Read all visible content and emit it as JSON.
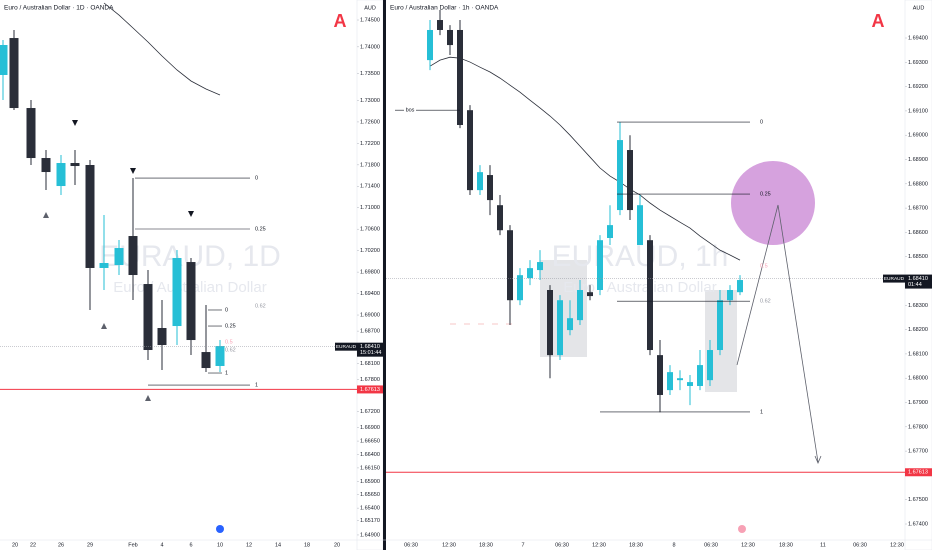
{
  "chart_data": [
    {
      "type": "candlestick",
      "title": "Euro / Australian Dollar · 1D · OANDA",
      "watermark": "EURAUD, 1D",
      "watermark_sub": "Euro / Australian Dollar",
      "currency": "AUD",
      "up_color": "#26bfd6",
      "down_color": "#2a2e39",
      "ma_color": "#2a2e39",
      "ylim": [
        1.64806,
        1.74873
      ],
      "yticks": [
        {
          "value": 1.745,
          "label": "1.74500"
        },
        {
          "value": 1.74,
          "label": "1.74000"
        },
        {
          "value": 1.735,
          "label": "1.73500"
        },
        {
          "value": 1.73,
          "label": "1.73000"
        },
        {
          "value": 1.726,
          "label": "1.72600"
        },
        {
          "value": 1.722,
          "label": "1.72200"
        },
        {
          "value": 1.718,
          "label": "1.71800"
        },
        {
          "value": 1.714,
          "label": "1.71400"
        },
        {
          "value": 1.71,
          "label": "1.71000"
        },
        {
          "value": 1.706,
          "label": "1.70600"
        },
        {
          "value": 1.702,
          "label": "1.70200"
        },
        {
          "value": 1.698,
          "label": "1.69800"
        },
        {
          "value": 1.694,
          "label": "1.69400"
        },
        {
          "value": 1.69,
          "label": "1.69000"
        },
        {
          "value": 1.687,
          "label": "1.68700"
        },
        {
          "value": 1.681,
          "label": "1.68100"
        },
        {
          "value": 1.678,
          "label": "1.67800"
        },
        {
          "value": 1.672,
          "label": "1.67200"
        },
        {
          "value": 1.669,
          "label": "1.66900"
        },
        {
          "value": 1.6665,
          "label": "1.66650"
        },
        {
          "value": 1.664,
          "label": "1.66400"
        },
        {
          "value": 1.6615,
          "label": "1.66150"
        },
        {
          "value": 1.659,
          "label": "1.65900"
        },
        {
          "value": 1.6565,
          "label": "1.65650"
        },
        {
          "value": 1.654,
          "label": "1.65400"
        },
        {
          "value": 1.6517,
          "label": "1.65170"
        },
        {
          "value": 1.649,
          "label": "1.64900"
        }
      ],
      "xlabels": [
        "20",
        "22",
        "26",
        "29",
        "Feb",
        "4",
        "6",
        "10",
        "12",
        "14",
        "18",
        "20"
      ],
      "open": [
        1.73475,
        1.74164,
        1.72859,
        1.71927,
        1.71405,
        1.71834,
        1.71797,
        1.69877,
        1.69932,
        1.70473,
        1.69578,
        1.68758,
        1.68795,
        1.69988,
        1.6831,
        1.6805
      ],
      "high": [
        1.74127,
        1.74314,
        1.73009,
        1.72076,
        1.71983,
        1.72076,
        1.7189,
        1.70865,
        1.70399,
        1.71554,
        1.69839,
        1.6928,
        1.70212,
        1.70063,
        1.69187,
        1.68534
      ],
      "low": [
        1.73009,
        1.72822,
        1.71797,
        1.71331,
        1.71238,
        1.71424,
        1.69094,
        1.69466,
        1.69746,
        1.6928,
        1.68162,
        1.67975,
        1.68441,
        1.68255,
        1.67938,
        1.67938
      ],
      "close": [
        1.74034,
        1.72859,
        1.71927,
        1.71666,
        1.71834,
        1.71778,
        1.69877,
        1.6997,
        1.70249,
        1.69746,
        1.68348,
        1.68441,
        1.70063,
        1.68534,
        1.68012,
        1.68422
      ],
      "ma": [
        null,
        null,
        null,
        null,
        null,
        null,
        null,
        1.74817,
        1.74593,
        1.74351,
        1.7409,
        1.73829,
        1.73568,
        1.73363,
        1.73214,
        1.73102
      ],
      "levels": [
        {
          "label": "0",
          "price": 1.71554,
          "color": "#131722"
        },
        {
          "label": "0.25",
          "price": 1.70604,
          "color": "#131722"
        },
        {
          "label": "0.62",
          "price": 1.69168,
          "color": "#9598a1"
        },
        {
          "label": "0",
          "price": 1.69094,
          "color": "#131722"
        },
        {
          "label": "0.25",
          "price": 1.68795,
          "color": "#131722"
        },
        {
          "label": "0.5",
          "price": 1.68497,
          "color": "#f7a1b5"
        },
        {
          "label": "0.62",
          "price": 1.68348,
          "color": "#9598a1"
        },
        {
          "label": "1",
          "price": 1.67919,
          "color": "#131722"
        },
        {
          "label": "1",
          "price": 1.67695,
          "color": "#131722"
        }
      ],
      "red_line": {
        "value": 1.67613,
        "label": "1.67613"
      },
      "current_price": {
        "value": 1.6841,
        "label": "1.68410",
        "symbol": "EURAUD",
        "countdown": "15:01:44"
      }
    },
    {
      "type": "candlestick",
      "title": "Euro / Australian Dollar · 1h · OANDA",
      "watermark": "EURAUD, 1h",
      "watermark_sub": "Euro / Australian Dollar",
      "currency": "AUD",
      "up_color": "#26bfd6",
      "down_color": "#2a2e39",
      "ma_color": "#2a2e39",
      "ylim": [
        1.673342,
        1.695564
      ],
      "yticks": [
        {
          "value": 1.694,
          "label": "1.69400"
        },
        {
          "value": 1.693,
          "label": "1.69300"
        },
        {
          "value": 1.692,
          "label": "1.69200"
        },
        {
          "value": 1.691,
          "label": "1.69100"
        },
        {
          "value": 1.69,
          "label": "1.69000"
        },
        {
          "value": 1.689,
          "label": "1.68900"
        },
        {
          "value": 1.688,
          "label": "1.68800"
        },
        {
          "value": 1.687,
          "label": "1.68700"
        },
        {
          "value": 1.686,
          "label": "1.68600"
        },
        {
          "value": 1.685,
          "label": "1.68500"
        },
        {
          "value": 1.683,
          "label": "1.68300"
        },
        {
          "value": 1.682,
          "label": "1.68200"
        },
        {
          "value": 1.681,
          "label": "1.68100"
        },
        {
          "value": 1.68,
          "label": "1.68000"
        },
        {
          "value": 1.679,
          "label": "1.67900"
        },
        {
          "value": 1.678,
          "label": "1.67800"
        },
        {
          "value": 1.677,
          "label": "1.67700"
        },
        {
          "value": 1.675,
          "label": "1.67500"
        },
        {
          "value": 1.674,
          "label": "1.67400"
        }
      ],
      "xlabels": [
        "06:30",
        "12:30",
        "18:30",
        "7",
        "06:30",
        "12:30",
        "18:30",
        "8",
        "06:30",
        "12:30",
        "18:30",
        "11",
        "06:30",
        "12:30"
      ],
      "open": [
        1.69309,
        1.69474,
        1.69433,
        1.69433,
        1.69103,
        1.68774,
        1.68836,
        1.68712,
        1.68609,
        1.68321,
        1.68412,
        1.68445,
        1.68363,
        1.68095,
        1.68198,
        1.68239,
        1.68354,
        1.68363,
        1.68577,
        1.68692,
        1.68939,
        1.68548,
        1.68568,
        1.68095,
        1.67951,
        1.67992,
        1.67968,
        1.67968,
        1.67992,
        1.68116,
        1.68321,
        1.68354
      ],
      "high": [
        1.69474,
        1.69515,
        1.69453,
        1.69474,
        1.69124,
        1.68877,
        1.68877,
        1.68754,
        1.6863,
        1.68453,
        1.68486,
        1.68527,
        1.68383,
        1.68342,
        1.68321,
        1.68404,
        1.68383,
        1.68589,
        1.68712,
        1.69054,
        1.69,
        1.68754,
        1.68589,
        1.68157,
        1.68054,
        1.68033,
        1.68013,
        1.68116,
        1.68157,
        1.68363,
        1.68383,
        1.68424
      ],
      "low": [
        1.69268,
        1.69412,
        1.6933,
        1.69029,
        1.68754,
        1.68754,
        1.68671,
        1.68589,
        1.68219,
        1.68301,
        1.68383,
        1.68404,
        1.68,
        1.68075,
        1.68177,
        1.68219,
        1.68321,
        1.68342,
        1.68548,
        1.68671,
        1.68651,
        1.68548,
        1.68095,
        1.6786,
        1.67931,
        1.67951,
        1.67889,
        1.67951,
        1.67968,
        1.68095,
        1.68301,
        1.68342
      ],
      "close": [
        1.69433,
        1.69433,
        1.69371,
        1.69042,
        1.68774,
        1.68848,
        1.68733,
        1.68609,
        1.68321,
        1.68424,
        1.68453,
        1.68478,
        1.68095,
        1.68321,
        1.68247,
        1.68363,
        1.68338,
        1.68568,
        1.6863,
        1.6898,
        1.68692,
        1.68712,
        1.68116,
        1.67931,
        1.68025,
        1.68,
        1.67984,
        1.68054,
        1.68116,
        1.68321,
        1.68363,
        1.68404
      ],
      "ma": [
        1.69284,
        1.69309,
        1.69321,
        1.69317,
        1.69301,
        1.6928,
        1.6926,
        1.69235,
        1.69206,
        1.69177,
        1.69144,
        1.69112,
        1.69079,
        1.69042,
        1.69,
        1.68955,
        1.6891,
        1.68865,
        1.68832,
        1.68807,
        1.68778,
        1.68754,
        1.68721,
        1.68692,
        1.68667,
        1.68642,
        1.68618,
        1.68585,
        1.68556,
        1.68527,
        1.68507,
        1.68486
      ],
      "bos": {
        "label": "bos",
        "price": 1.69103
      },
      "levels": [
        {
          "label": "0",
          "price": 1.69054,
          "color": "#131722"
        },
        {
          "label": "0.25",
          "price": 1.68758,
          "color": "#131722"
        },
        {
          "label": "0.5",
          "price": 1.68461,
          "color": "#f7a1b5"
        },
        {
          "label": "0.62",
          "price": 1.68317,
          "color": "#9598a1"
        },
        {
          "label": "1",
          "price": 1.67861,
          "color": "#131722"
        }
      ],
      "red_line": {
        "value": 1.67613,
        "label": "1.67613"
      },
      "current_price": {
        "value": 1.6841,
        "label": "1.68410",
        "symbol": "EURAUD",
        "countdown": "01:44"
      }
    }
  ]
}
